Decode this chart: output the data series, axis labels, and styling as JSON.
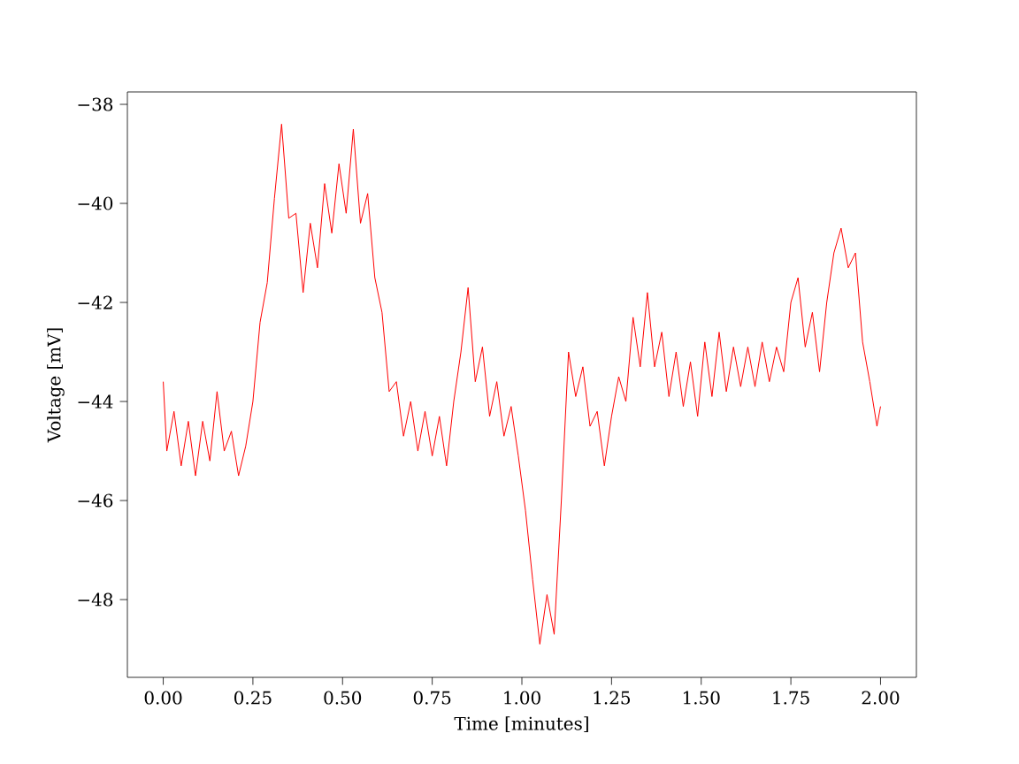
{
  "chart_data": {
    "type": "line",
    "xlabel": "Time [minutes]",
    "ylabel": "Voltage [mV]",
    "xlim": [
      -0.1,
      2.1
    ],
    "ylim": [
      -49.57,
      -37.75
    ],
    "xticks": [
      {
        "value": 0,
        "label": "0.00"
      },
      {
        "value": 0.25,
        "label": "0.25"
      },
      {
        "value": 0.5,
        "label": "0.50"
      },
      {
        "value": 0.75,
        "label": "0.75"
      },
      {
        "value": 1,
        "label": "1.00"
      },
      {
        "value": 1.25,
        "label": "1.25"
      },
      {
        "value": 1.5,
        "label": "1.50"
      },
      {
        "value": 1.75,
        "label": "1.75"
      },
      {
        "value": 2,
        "label": "2.00"
      }
    ],
    "yticks": [
      {
        "value": -48,
        "label": "−48"
      },
      {
        "value": -46,
        "label": "−46"
      },
      {
        "value": -44,
        "label": "−44"
      },
      {
        "value": -42,
        "label": "−42"
      },
      {
        "value": -40,
        "label": "−40"
      },
      {
        "value": -38,
        "label": "−38"
      }
    ],
    "grid": false,
    "marker": "none",
    "line_style": "solid",
    "series": [
      {
        "color": "#ff0000",
        "x": [
          0,
          0.01,
          0.03,
          0.05,
          0.07,
          0.09,
          0.11,
          0.13,
          0.15,
          0.17,
          0.19,
          0.21,
          0.23,
          0.25,
          0.27,
          0.29,
          0.31,
          0.33,
          0.35,
          0.37,
          0.39,
          0.41,
          0.43,
          0.45,
          0.47,
          0.49,
          0.51,
          0.53,
          0.55,
          0.57,
          0.59,
          0.61,
          0.63,
          0.65,
          0.67,
          0.69,
          0.71,
          0.73,
          0.75,
          0.77,
          0.79,
          0.81,
          0.83,
          0.85,
          0.87,
          0.89,
          0.91,
          0.93,
          0.95,
          0.97,
          0.99,
          1.01,
          1.03,
          1.05,
          1.07,
          1.09,
          1.11,
          1.13,
          1.15,
          1.17,
          1.19,
          1.21,
          1.23,
          1.25,
          1.27,
          1.29,
          1.31,
          1.33,
          1.35,
          1.37,
          1.39,
          1.41,
          1.43,
          1.45,
          1.47,
          1.49,
          1.51,
          1.53,
          1.55,
          1.57,
          1.59,
          1.61,
          1.63,
          1.65,
          1.67,
          1.69,
          1.71,
          1.73,
          1.75,
          1.77,
          1.79,
          1.81,
          1.83,
          1.85,
          1.87,
          1.89,
          1.91,
          1.93,
          1.95,
          1.97,
          1.99,
          2.0
        ],
        "values": [
          -43.6,
          -45.0,
          -44.2,
          -45.3,
          -44.4,
          -45.5,
          -44.4,
          -45.2,
          -43.8,
          -45.0,
          -44.6,
          -45.5,
          -44.9,
          -44.0,
          -42.4,
          -41.6,
          -39.9,
          -38.4,
          -40.3,
          -40.2,
          -41.8,
          -40.4,
          -41.3,
          -39.6,
          -40.6,
          -39.2,
          -40.2,
          -38.5,
          -40.4,
          -39.8,
          -41.5,
          -42.2,
          -43.8,
          -43.6,
          -44.7,
          -44.0,
          -45.0,
          -44.2,
          -45.1,
          -44.3,
          -45.3,
          -44.0,
          -43.0,
          -41.7,
          -43.6,
          -42.9,
          -44.3,
          -43.6,
          -44.7,
          -44.1,
          -45.1,
          -46.2,
          -47.6,
          -48.9,
          -47.9,
          -48.7,
          -46.0,
          -43.0,
          -43.9,
          -43.3,
          -44.5,
          -44.2,
          -45.3,
          -44.3,
          -43.5,
          -44.0,
          -42.3,
          -43.3,
          -41.8,
          -43.3,
          -42.6,
          -43.9,
          -43.0,
          -44.1,
          -43.2,
          -44.3,
          -42.8,
          -43.9,
          -42.6,
          -43.8,
          -42.9,
          -43.7,
          -42.9,
          -43.7,
          -42.8,
          -43.6,
          -42.9,
          -43.4,
          -42.0,
          -41.5,
          -42.9,
          -42.2,
          -43.4,
          -42.0,
          -41.0,
          -40.5,
          -41.3,
          -41.0,
          -42.8,
          -43.6,
          -44.5,
          -44.1
        ]
      }
    ]
  }
}
